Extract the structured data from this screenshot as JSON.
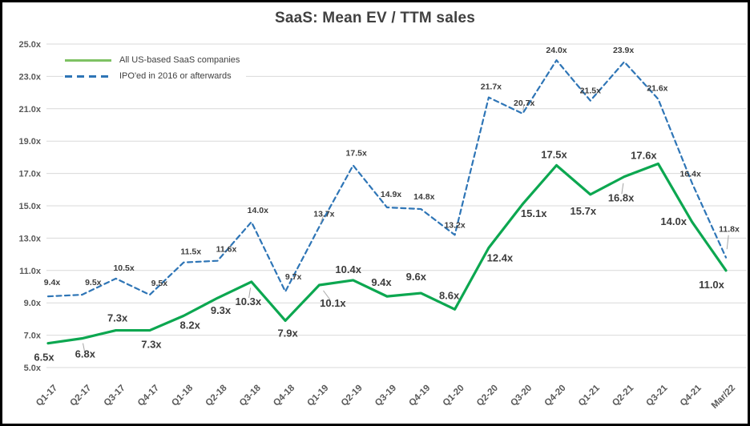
{
  "chart_data": {
    "type": "line",
    "title": "SaaS: Mean EV / TTM sales",
    "categories": [
      "Q1-17",
      "Q2-17",
      "Q3-17",
      "Q4-17",
      "Q1-18",
      "Q2-18",
      "Q3-18",
      "Q4-18",
      "Q1-19",
      "Q2-19",
      "Q3-19",
      "Q4-19",
      "Q1-20",
      "Q2-20",
      "Q3-20",
      "Q4-20",
      "Q1-21",
      "Q2-21",
      "Q3-21",
      "Q4-21",
      "Mar/22"
    ],
    "series": [
      {
        "name": "All US-based SaaS companies",
        "color": "#0CA750",
        "legend_color": "#7EC263",
        "style": "solid",
        "values": [
          6.5,
          6.8,
          7.3,
          7.3,
          8.2,
          9.3,
          10.3,
          7.9,
          10.1,
          10.4,
          9.4,
          9.6,
          8.6,
          12.4,
          15.1,
          17.5,
          15.7,
          16.8,
          17.6,
          14.0,
          11.0
        ],
        "label_font_size": 13,
        "label_offsets": [
          [
            -5,
            18
          ],
          [
            4,
            20
          ],
          [
            2,
            -15
          ],
          [
            2,
            18
          ],
          [
            8,
            12
          ],
          [
            4,
            16
          ],
          [
            -4,
            25
          ],
          [
            3,
            16
          ],
          [
            17,
            23
          ],
          [
            -6,
            -13
          ],
          [
            -7,
            -17
          ],
          [
            -6,
            -20
          ],
          [
            -7,
            -17
          ],
          [
            14,
            13
          ],
          [
            14,
            12
          ],
          [
            -3,
            -13
          ],
          [
            -9,
            21
          ],
          [
            -4,
            27
          ],
          [
            -18,
            -10
          ],
          [
            -23,
            0
          ],
          [
            -18,
            18
          ]
        ],
        "leader_indices": [
          1,
          6,
          8,
          17
        ]
      },
      {
        "name": "IPO'ed in 2016 or afterwards",
        "color": "#2E75B6",
        "legend_color": "#2E75B6",
        "style": "dashed",
        "values": [
          9.4,
          9.5,
          10.5,
          9.5,
          11.5,
          11.6,
          14.0,
          9.7,
          13.7,
          17.5,
          14.9,
          14.8,
          13.2,
          21.7,
          20.7,
          24.0,
          21.5,
          23.9,
          21.6,
          16.4,
          11.8
        ],
        "label_font_size": 10.5,
        "label_offsets": [
          [
            5,
            -17
          ],
          [
            14,
            -15
          ],
          [
            10,
            -13
          ],
          [
            12,
            -14
          ],
          [
            9,
            -13
          ],
          [
            11,
            -14
          ],
          [
            8,
            -14
          ],
          [
            10,
            -18
          ],
          [
            6,
            -16
          ],
          [
            4,
            -15
          ],
          [
            5,
            -16
          ],
          [
            4,
            -15
          ],
          [
            0,
            -12
          ],
          [
            3,
            -13
          ],
          [
            2,
            -13
          ],
          [
            0,
            -12
          ],
          [
            0,
            -12
          ],
          [
            -1,
            -14
          ],
          [
            -1,
            -13
          ],
          [
            -2,
            -11
          ],
          [
            4,
            -35
          ]
        ],
        "leader_indices": [
          8,
          14,
          20
        ]
      }
    ],
    "y_axis": {
      "min": 5,
      "max": 25,
      "step": 2,
      "suffix": "x",
      "tick_labels": [
        "5.0x",
        "7.0x",
        "9.0x",
        "11.0x",
        "13.0x",
        "15.0x",
        "17.0x",
        "19.0x",
        "21.0x",
        "23.0x",
        "25.0x"
      ]
    },
    "x_axis": {
      "rotation": -45
    },
    "value_suffix": "x",
    "grid": true,
    "legend_position": "top-left"
  },
  "colors": {
    "grid": "#D9D9D9",
    "axis_text": "#595959",
    "title_text": "#404040",
    "data_label": "#3C3C3C",
    "leader": "#A6A6A6",
    "border": "#000000",
    "background": "#FFFFFF"
  }
}
